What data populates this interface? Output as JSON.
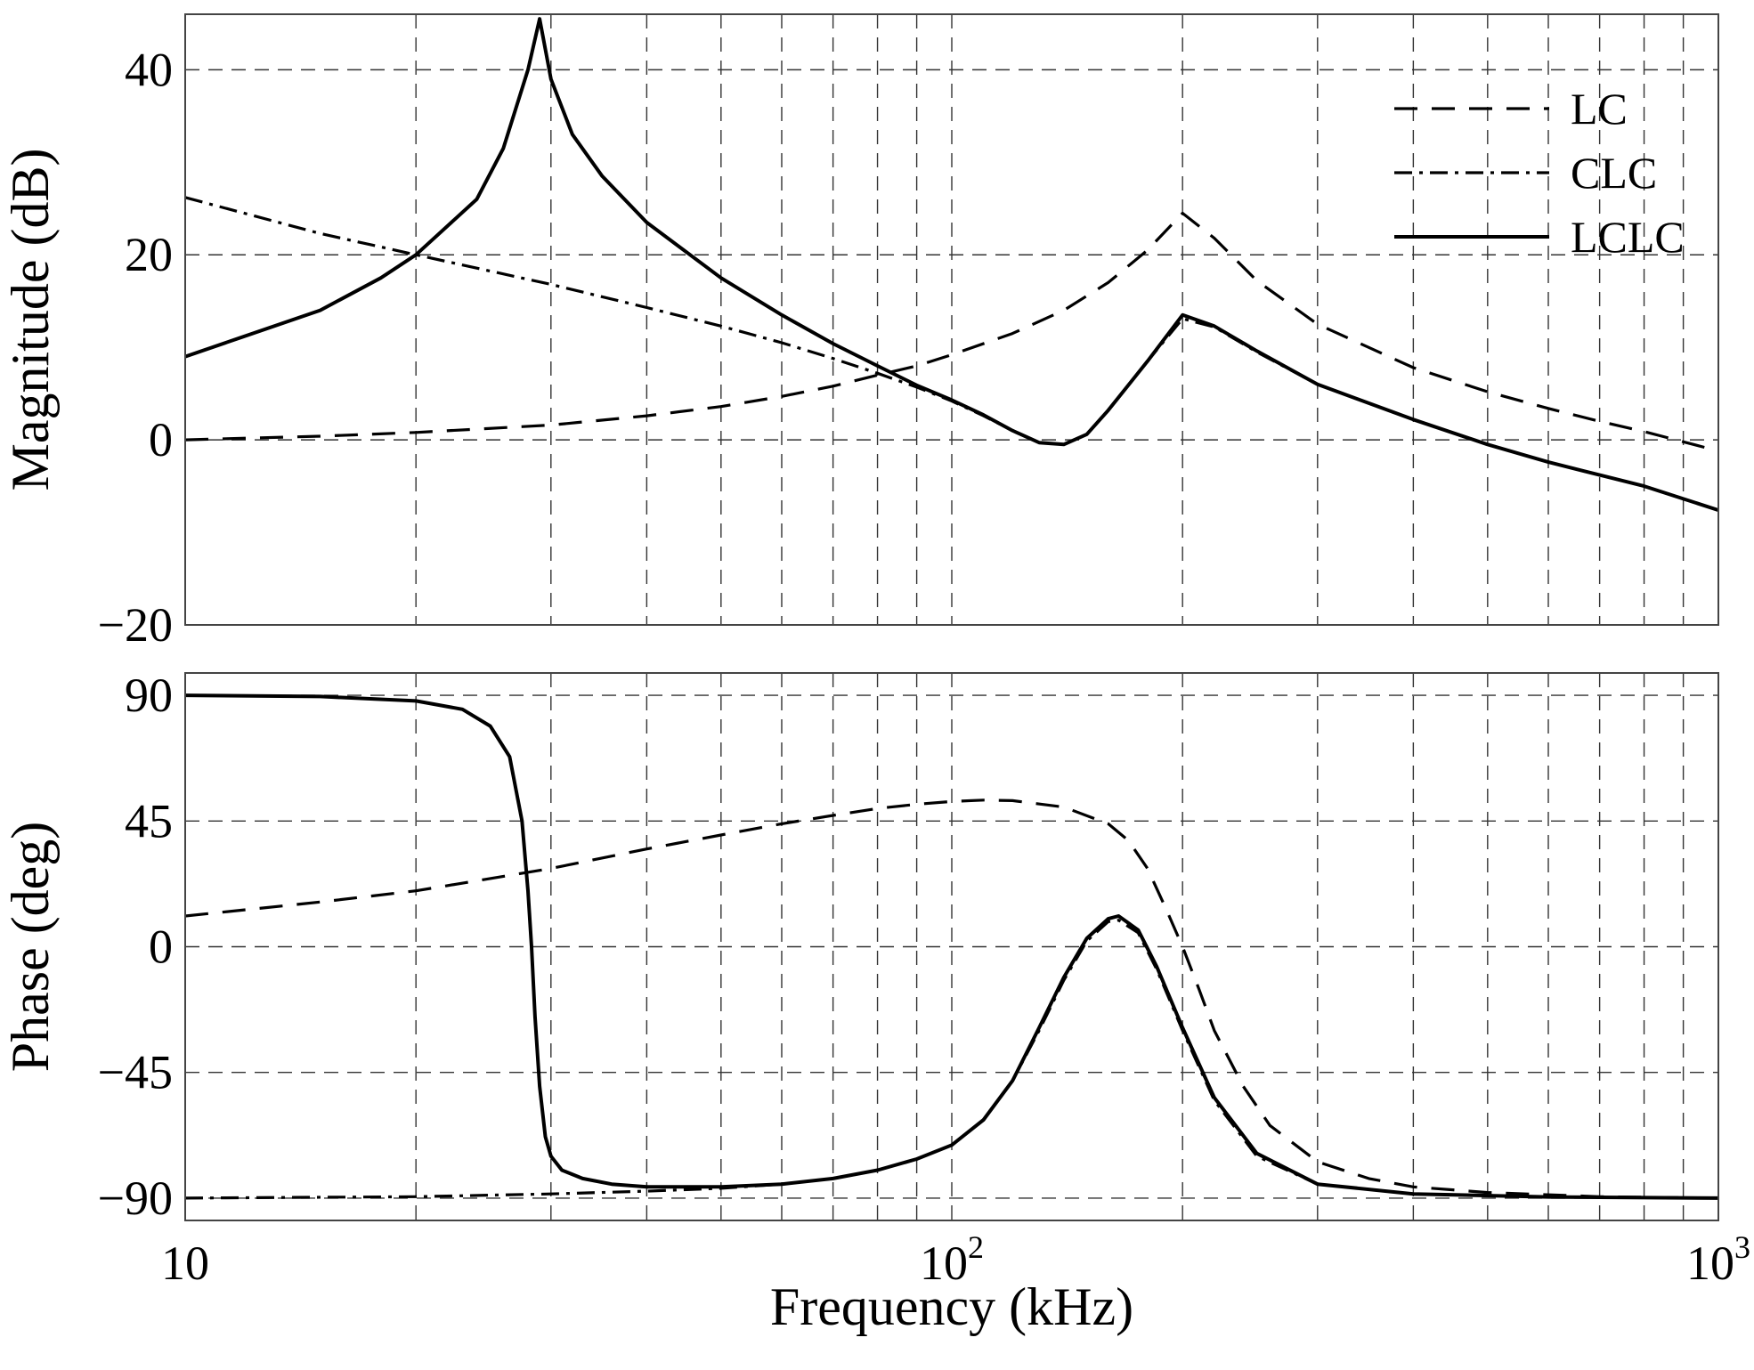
{
  "chart_data": [
    {
      "panel": "magnitude",
      "type": "line",
      "title": "",
      "xlabel": "",
      "ylabel": "Magnitude (dB)",
      "xscale": "log",
      "xlim": [
        10,
        1000
      ],
      "ylim": [
        -20,
        46
      ],
      "yticks": [
        {
          "value": 40,
          "label": "40"
        },
        {
          "value": 20,
          "label": "20"
        },
        {
          "value": 0,
          "label": "0"
        },
        {
          "value": -20,
          "label": "−20"
        }
      ],
      "grid": true,
      "legend_position": "top-right",
      "series": [
        {
          "name": "LC",
          "style": "dashed",
          "points": [
            [
              10,
              0
            ],
            [
              15,
              0.4
            ],
            [
              20,
              0.8
            ],
            [
              30,
              1.6
            ],
            [
              40,
              2.6
            ],
            [
              50,
              3.6
            ],
            [
              60,
              4.7
            ],
            [
              70,
              5.8
            ],
            [
              80,
              7.0
            ],
            [
              90,
              8.0
            ],
            [
              100,
              9.2
            ],
            [
              120,
              11.5
            ],
            [
              140,
              14.0
            ],
            [
              160,
              17.0
            ],
            [
              180,
              20.5
            ],
            [
              200,
              24.5
            ],
            [
              220,
              21.8
            ],
            [
              250,
              17.2
            ],
            [
              300,
              12.5
            ],
            [
              400,
              7.8
            ],
            [
              500,
              5.2
            ],
            [
              600,
              3.4
            ],
            [
              700,
              2.0
            ],
            [
              800,
              0.9
            ],
            [
              1000,
              -1.2
            ]
          ]
        },
        {
          "name": "CLC",
          "style": "dash-dot",
          "points": [
            [
              10,
              26.2
            ],
            [
              15,
              22.3
            ],
            [
              20,
              20.0
            ],
            [
              30,
              16.8
            ],
            [
              40,
              14.3
            ],
            [
              50,
              12.3
            ],
            [
              60,
              10.5
            ],
            [
              70,
              8.8
            ],
            [
              80,
              7.2
            ],
            [
              90,
              5.7
            ],
            [
              100,
              4.2
            ],
            [
              110,
              2.6
            ],
            [
              120,
              1.0
            ],
            [
              130,
              -0.3
            ],
            [
              140,
              -0.5
            ],
            [
              150,
              0.6
            ],
            [
              160,
              3.2
            ],
            [
              180,
              8.5
            ],
            [
              200,
              13.1
            ],
            [
              220,
              12.2
            ],
            [
              250,
              9.5
            ],
            [
              300,
              6.0
            ],
            [
              400,
              2.2
            ],
            [
              500,
              -0.5
            ],
            [
              600,
              -2.4
            ],
            [
              700,
              -3.8
            ],
            [
              800,
              -5.0
            ],
            [
              1000,
              -7.6
            ]
          ]
        },
        {
          "name": "LCLC",
          "style": "solid",
          "points": [
            [
              10,
              9.0
            ],
            [
              15,
              14.0
            ],
            [
              18,
              17.5
            ],
            [
              20,
              20.0
            ],
            [
              24,
              26.0
            ],
            [
              26,
              31.5
            ],
            [
              28,
              40.0
            ],
            [
              29,
              45.5
            ],
            [
              30,
              39.0
            ],
            [
              32,
              33.0
            ],
            [
              35,
              28.5
            ],
            [
              40,
              23.5
            ],
            [
              50,
              17.5
            ],
            [
              60,
              13.5
            ],
            [
              70,
              10.4
            ],
            [
              80,
              8.0
            ],
            [
              90,
              5.9
            ],
            [
              100,
              4.3
            ],
            [
              110,
              2.7
            ],
            [
              120,
              1.0
            ],
            [
              130,
              -0.3
            ],
            [
              140,
              -0.5
            ],
            [
              150,
              0.6
            ],
            [
              160,
              3.2
            ],
            [
              180,
              8.5
            ],
            [
              200,
              13.5
            ],
            [
              220,
              12.3
            ],
            [
              250,
              9.6
            ],
            [
              300,
              6.0
            ],
            [
              400,
              2.2
            ],
            [
              500,
              -0.5
            ],
            [
              600,
              -2.4
            ],
            [
              700,
              -3.8
            ],
            [
              800,
              -5.0
            ],
            [
              1000,
              -7.6
            ]
          ]
        }
      ]
    },
    {
      "panel": "phase",
      "type": "line",
      "title": "",
      "xlabel": "Frequency (kHz)",
      "ylabel": "Phase (deg)",
      "xscale": "log",
      "xlim": [
        10,
        1000
      ],
      "ylim": [
        -98,
        98
      ],
      "xticks": [
        {
          "value": 10,
          "base": "10",
          "exp": ""
        },
        {
          "value": 100,
          "base": "10",
          "exp": "2"
        },
        {
          "value": 1000,
          "base": "10",
          "exp": "3"
        }
      ],
      "yticks": [
        {
          "value": 90,
          "label": "90"
        },
        {
          "value": 45,
          "label": "45"
        },
        {
          "value": 0,
          "label": "0"
        },
        {
          "value": -45,
          "label": "−45"
        },
        {
          "value": -90,
          "label": "−90"
        }
      ],
      "grid": true,
      "series": [
        {
          "name": "LC",
          "style": "dashed",
          "points": [
            [
              10,
              11
            ],
            [
              15,
              16
            ],
            [
              20,
              20
            ],
            [
              30,
              28
            ],
            [
              40,
              35
            ],
            [
              50,
              40
            ],
            [
              60,
              44
            ],
            [
              70,
              47
            ],
            [
              80,
              49.5
            ],
            [
              90,
              51
            ],
            [
              100,
              52
            ],
            [
              110,
              52.5
            ],
            [
              120,
              52.3
            ],
            [
              140,
              50
            ],
            [
              160,
              44
            ],
            [
              170,
              38
            ],
            [
              180,
              28
            ],
            [
              190,
              14
            ],
            [
              200,
              0
            ],
            [
              210,
              -15
            ],
            [
              220,
              -30
            ],
            [
              240,
              -50
            ],
            [
              260,
              -64
            ],
            [
              300,
              -77
            ],
            [
              350,
              -83
            ],
            [
              400,
              -86
            ],
            [
              500,
              -88
            ],
            [
              700,
              -89.5
            ],
            [
              1000,
              -90
            ]
          ]
        },
        {
          "name": "CLC",
          "style": "dash-dot",
          "points": [
            [
              10,
              -90
            ],
            [
              20,
              -89.5
            ],
            [
              30,
              -88.5
            ],
            [
              40,
              -87.5
            ],
            [
              50,
              -86.5
            ],
            [
              60,
              -85
            ],
            [
              70,
              -83
            ],
            [
              80,
              -80
            ],
            [
              90,
              -76
            ],
            [
              100,
              -71
            ],
            [
              110,
              -62
            ],
            [
              120,
              -48
            ],
            [
              130,
              -30
            ],
            [
              140,
              -12
            ],
            [
              150,
              2
            ],
            [
              160,
              9
            ],
            [
              165,
              9.5
            ],
            [
              175,
              5
            ],
            [
              185,
              -8
            ],
            [
              200,
              -30
            ],
            [
              220,
              -55
            ],
            [
              250,
              -75
            ],
            [
              300,
              -85
            ],
            [
              400,
              -88.5
            ],
            [
              600,
              -89.6
            ],
            [
              1000,
              -90
            ]
          ]
        },
        {
          "name": "LCLC",
          "style": "solid",
          "points": [
            [
              10,
              90
            ],
            [
              15,
              89.6
            ],
            [
              20,
              88
            ],
            [
              23,
              85
            ],
            [
              25,
              79
            ],
            [
              26.5,
              68
            ],
            [
              27.5,
              45
            ],
            [
              28,
              20
            ],
            [
              28.3,
              0
            ],
            [
              28.6,
              -25
            ],
            [
              29,
              -50
            ],
            [
              29.5,
              -68
            ],
            [
              30,
              -75
            ],
            [
              31,
              -80
            ],
            [
              33,
              -83
            ],
            [
              36,
              -85
            ],
            [
              40,
              -86
            ],
            [
              50,
              -86
            ],
            [
              60,
              -85
            ],
            [
              70,
              -83
            ],
            [
              80,
              -80
            ],
            [
              90,
              -76
            ],
            [
              100,
              -71
            ],
            [
              110,
              -62
            ],
            [
              120,
              -48
            ],
            [
              130,
              -29
            ],
            [
              140,
              -11
            ],
            [
              150,
              3
            ],
            [
              160,
              10
            ],
            [
              165,
              11
            ],
            [
              175,
              6
            ],
            [
              185,
              -7
            ],
            [
              200,
              -29
            ],
            [
              220,
              -54
            ],
            [
              250,
              -74
            ],
            [
              300,
              -85
            ],
            [
              400,
              -88.5
            ],
            [
              600,
              -89.6
            ],
            [
              1000,
              -90
            ]
          ]
        }
      ]
    }
  ]
}
